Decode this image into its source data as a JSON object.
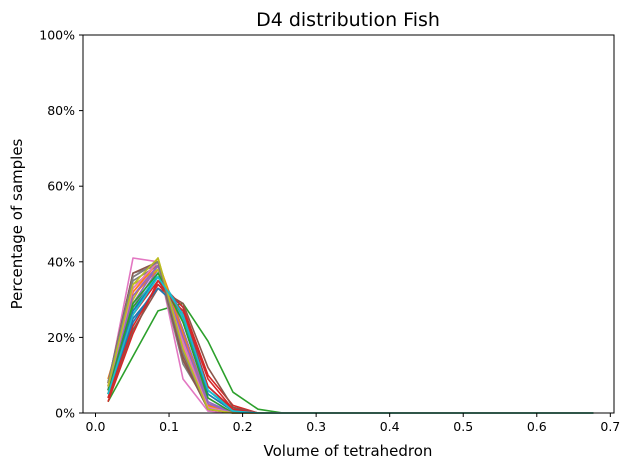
{
  "chart_data": {
    "type": "line",
    "title": "D4 distribution Fish",
    "xlabel": "Volume of tetrahedron",
    "ylabel": "Percentage of samples",
    "xlim": [
      -0.017,
      0.705
    ],
    "ylim": [
      0,
      100
    ],
    "xticks": [
      0.0,
      0.1,
      0.2,
      0.3,
      0.4,
      0.5,
      0.6,
      0.7
    ],
    "xtick_labels": [
      "0.0",
      "0.1",
      "0.2",
      "0.3",
      "0.4",
      "0.5",
      "0.6",
      "0.7"
    ],
    "yticks": [
      0,
      20,
      40,
      60,
      80,
      100
    ],
    "ytick_labels": [
      "0%",
      "20%",
      "40%",
      "60%",
      "80%",
      "100%"
    ],
    "grid": false,
    "legend": "none",
    "x": [
      0.017,
      0.051,
      0.085,
      0.119,
      0.153,
      0.187,
      0.221,
      0.255,
      0.289,
      0.323,
      0.357,
      0.391,
      0.425,
      0.459,
      0.493,
      0.527,
      0.561,
      0.595,
      0.629,
      0.677
    ],
    "series": [
      {
        "color": "#1f77b4",
        "values": [
          5,
          24,
          34,
          28,
          6,
          1,
          0,
          0,
          0,
          0,
          0,
          0,
          0,
          0,
          0,
          0,
          0,
          0,
          0,
          0
        ]
      },
      {
        "color": "#ff7f0e",
        "values": [
          8,
          33,
          40,
          22,
          2,
          0,
          0,
          0,
          0,
          0,
          0,
          0,
          0,
          0,
          0,
          0,
          0,
          0,
          0,
          0
        ]
      },
      {
        "color": "#2ca02c",
        "values": [
          3,
          15,
          27,
          29,
          19,
          5.5,
          1,
          0,
          0,
          0,
          0,
          0,
          0,
          0,
          0,
          0,
          0,
          0,
          0,
          0
        ]
      },
      {
        "color": "#d62728",
        "values": [
          3,
          21,
          35,
          28,
          10,
          2,
          0,
          0,
          0,
          0,
          0,
          0,
          0,
          0,
          0,
          0,
          0,
          0,
          0,
          0
        ]
      },
      {
        "color": "#9467bd",
        "values": [
          6,
          28,
          38,
          24,
          4,
          0,
          0,
          0,
          0,
          0,
          0,
          0,
          0,
          0,
          0,
          0,
          0,
          0,
          0,
          0
        ]
      },
      {
        "color": "#8c564b",
        "values": [
          4,
          22,
          33,
          29,
          12,
          1.5,
          0,
          0,
          0,
          0,
          0,
          0,
          0,
          0,
          0,
          0,
          0,
          0,
          0,
          0
        ]
      },
      {
        "color": "#e377c2",
        "values": [
          7,
          41,
          40,
          9,
          0.5,
          0,
          0,
          0,
          0,
          0,
          0,
          0,
          0,
          0,
          0,
          0,
          0,
          0,
          0,
          0
        ]
      },
      {
        "color": "#7f7f7f",
        "values": [
          8,
          37,
          39,
          13,
          2,
          0,
          0,
          0,
          0,
          0,
          0,
          0,
          0,
          0,
          0,
          0,
          0,
          0,
          0,
          0
        ]
      },
      {
        "color": "#bcbd22",
        "values": [
          7,
          30,
          41,
          18,
          1,
          0,
          0,
          0,
          0,
          0,
          0,
          0,
          0,
          0,
          0,
          0,
          0,
          0,
          0,
          0
        ]
      },
      {
        "color": "#17becf",
        "values": [
          6,
          26,
          37,
          26,
          6,
          1,
          0,
          0,
          0,
          0,
          0,
          0,
          0,
          0,
          0,
          0,
          0,
          0,
          0,
          0
        ]
      },
      {
        "color": "#1f77b4",
        "values": [
          5,
          25,
          33,
          27,
          7,
          1,
          0,
          0,
          0,
          0,
          0,
          0,
          0,
          0,
          0,
          0,
          0,
          0,
          0,
          0
        ]
      },
      {
        "color": "#ff7f0e",
        "values": [
          9,
          31,
          38,
          20,
          2,
          0,
          0,
          0,
          0,
          0,
          0,
          0,
          0,
          0,
          0,
          0,
          0,
          0,
          0,
          0
        ]
      },
      {
        "color": "#2ca02c",
        "values": [
          5,
          28,
          36,
          25,
          5,
          0.5,
          0,
          0,
          0,
          0,
          0,
          0,
          0,
          0,
          0,
          0,
          0,
          0,
          0,
          0
        ]
      },
      {
        "color": "#d62728",
        "values": [
          4,
          23,
          34,
          27,
          9,
          1,
          0,
          0,
          0,
          0,
          0,
          0,
          0,
          0,
          0,
          0,
          0,
          0,
          0,
          0
        ]
      },
      {
        "color": "#9467bd",
        "values": [
          7,
          29,
          39,
          22,
          3,
          0,
          0,
          0,
          0,
          0,
          0,
          0,
          0,
          0,
          0,
          0,
          0,
          0,
          0,
          0
        ]
      },
      {
        "color": "#8c564b",
        "values": [
          6,
          36,
          40,
          15,
          1,
          0,
          0,
          0,
          0,
          0,
          0,
          0,
          0,
          0,
          0,
          0,
          0,
          0,
          0,
          0
        ]
      },
      {
        "color": "#e377c2",
        "values": [
          6,
          32,
          39,
          19,
          2,
          0,
          0,
          0,
          0,
          0,
          0,
          0,
          0,
          0,
          0,
          0,
          0,
          0,
          0,
          0
        ]
      },
      {
        "color": "#7f7f7f",
        "values": [
          7,
          35,
          39,
          17,
          2,
          0,
          0,
          0,
          0,
          0,
          0,
          0,
          0,
          0,
          0,
          0,
          0,
          0,
          0,
          0
        ]
      },
      {
        "color": "#bcbd22",
        "values": [
          8,
          34,
          38,
          18,
          1.5,
          0,
          0,
          0,
          0,
          0,
          0,
          0,
          0,
          0,
          0,
          0,
          0,
          0,
          0,
          0
        ]
      },
      {
        "color": "#17becf",
        "values": [
          5,
          27,
          37,
          25,
          5,
          0.5,
          0,
          0,
          0,
          0,
          0,
          0,
          0,
          0,
          0,
          0,
          0,
          0,
          0,
          0
        ]
      },
      {
        "color": "#1f77b4",
        "values": [
          6,
          27,
          36,
          26,
          5,
          0.5,
          0,
          0,
          0,
          0,
          0,
          0,
          0,
          0,
          0,
          0,
          0,
          0,
          0,
          0
        ]
      },
      {
        "color": "#ff7f0e",
        "values": [
          7,
          32,
          40,
          21,
          2,
          0,
          0,
          0,
          0,
          0,
          0,
          0,
          0,
          0,
          0,
          0,
          0,
          0,
          0,
          0
        ]
      },
      {
        "color": "#2ca02c",
        "values": [
          6,
          29,
          37,
          24,
          4,
          0,
          0,
          0,
          0,
          0,
          0,
          0,
          0,
          0,
          0,
          0,
          0,
          0,
          0,
          0
        ]
      },
      {
        "color": "#d62728",
        "values": [
          5,
          26,
          35,
          26,
          7,
          1,
          0,
          0,
          0,
          0,
          0,
          0,
          0,
          0,
          0,
          0,
          0,
          0,
          0,
          0
        ]
      },
      {
        "color": "#9467bd",
        "values": [
          7,
          31,
          39,
          20,
          2.5,
          0,
          0,
          0,
          0,
          0,
          0,
          0,
          0,
          0,
          0,
          0,
          0,
          0,
          0,
          0
        ]
      },
      {
        "color": "#8c564b",
        "values": [
          8,
          37,
          40,
          14,
          1,
          0,
          0,
          0,
          0,
          0,
          0,
          0,
          0,
          0,
          0,
          0,
          0,
          0,
          0,
          0
        ]
      },
      {
        "color": "#e377c2",
        "values": [
          7,
          33,
          40,
          18,
          1.5,
          0,
          0,
          0,
          0,
          0,
          0,
          0,
          0,
          0,
          0,
          0,
          0,
          0,
          0,
          0
        ]
      },
      {
        "color": "#7f7f7f",
        "values": [
          8,
          36,
          40,
          16,
          1,
          0,
          0,
          0,
          0,
          0,
          0,
          0,
          0,
          0,
          0,
          0,
          0,
          0,
          0,
          0
        ]
      },
      {
        "color": "#bcbd22",
        "values": [
          7,
          34,
          41,
          17,
          1,
          0,
          0,
          0,
          0,
          0,
          0,
          0,
          0,
          0,
          0,
          0,
          0,
          0,
          0,
          0
        ]
      },
      {
        "color": "#17becf",
        "values": [
          5,
          26,
          36,
          26,
          6,
          0.5,
          0,
          0,
          0,
          0,
          0,
          0,
          0,
          0,
          0,
          0,
          0,
          0,
          0,
          0
        ]
      }
    ]
  }
}
